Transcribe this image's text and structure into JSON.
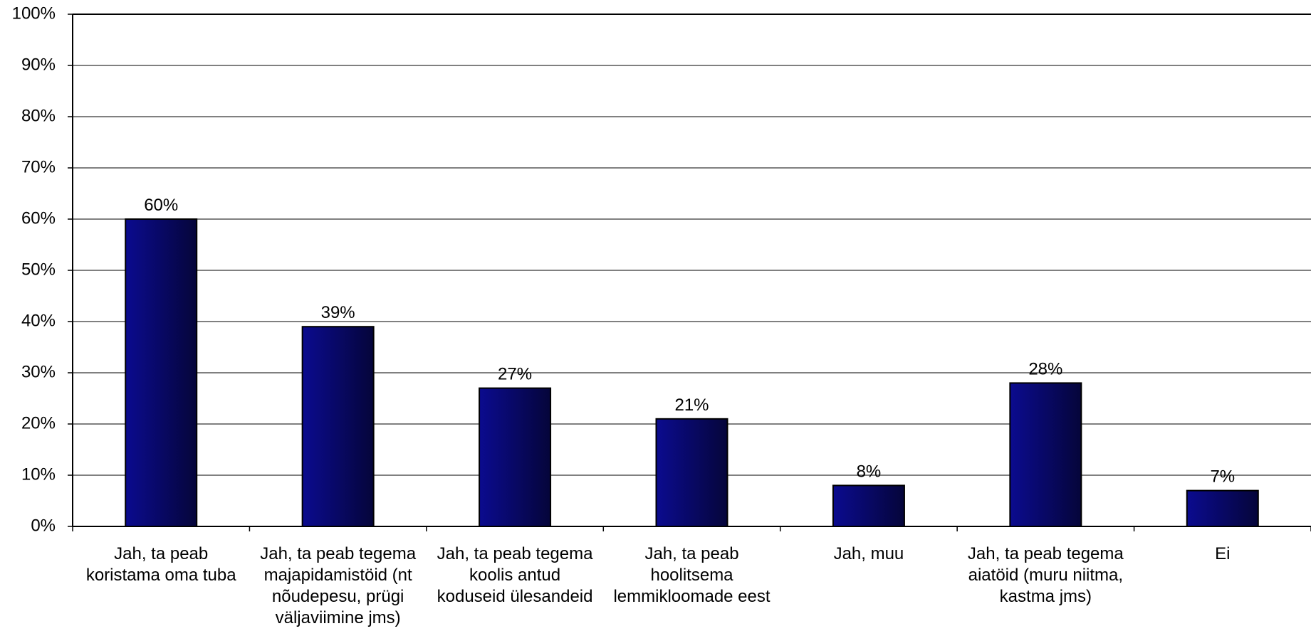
{
  "chart_data": {
    "type": "bar",
    "categories": [
      "Jah, ta peab\nkoristama oma tuba",
      "Jah, ta peab tegema\nmajapidamistöid (nt\nnõudepesu, prügi\nväljaviimine jms)",
      "Jah, ta peab tegema\nkoolis antud\nkoduseid ülesandeid",
      "Jah, ta peab\nhoolitsema\nlemmikloomade eest",
      "Jah, muu",
      "Jah, ta peab tegema\naiatöid (muru niitma,\nkastma jms)",
      "Ei"
    ],
    "values": [
      60,
      39,
      27,
      21,
      8,
      28,
      7
    ],
    "data_labels": [
      "60%",
      "39%",
      "27%",
      "21%",
      "8%",
      "28%",
      "7%"
    ],
    "ylim": [
      0,
      100
    ],
    "yticks": [
      "0%",
      "10%",
      "20%",
      "30%",
      "40%",
      "50%",
      "60%",
      "70%",
      "80%",
      "90%",
      "100%"
    ],
    "grid": true,
    "bar_color_light": "#0b0b8f",
    "bar_color_dark": "#05053a"
  }
}
